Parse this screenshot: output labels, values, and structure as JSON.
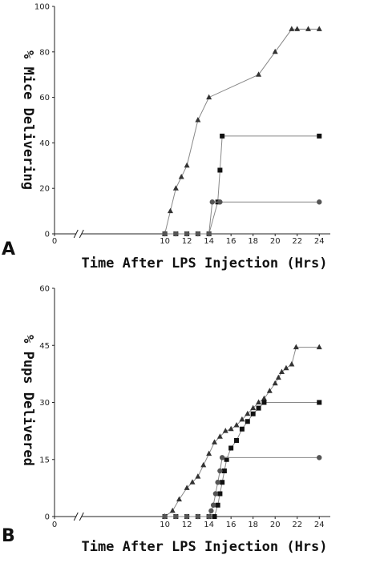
{
  "chart_data": [
    {
      "panel": "A",
      "type": "line",
      "xlabel": "Time After LPS Injection (Hrs)",
      "ylabel": "% Mice Delivering",
      "xlim": [
        0,
        25
      ],
      "ylim": [
        0,
        100
      ],
      "xticks": [
        0,
        10,
        12,
        14,
        16,
        18,
        20,
        22,
        24
      ],
      "yticks": [
        0,
        20,
        40,
        60,
        80,
        100
      ],
      "axis_break": true,
      "series": [
        {
          "marker": "triangle",
          "x": [
            10,
            10.5,
            11,
            11.5,
            12,
            13,
            14,
            18.5,
            20,
            21.5,
            22,
            23,
            24
          ],
          "y": [
            0,
            10,
            20,
            25,
            30,
            50,
            60,
            70,
            80,
            90,
            90,
            90,
            90
          ]
        },
        {
          "marker": "square",
          "x": [
            10,
            11,
            12,
            13,
            14,
            14.8,
            15,
            15.2,
            24
          ],
          "y": [
            0,
            0,
            0,
            0,
            0,
            14,
            28,
            43,
            43
          ]
        },
        {
          "marker": "circle",
          "x": [
            10,
            11,
            12,
            13,
            14,
            14.3,
            15,
            24
          ],
          "y": [
            0,
            0,
            0,
            0,
            0,
            14,
            14,
            14
          ]
        }
      ]
    },
    {
      "panel": "B",
      "type": "line",
      "xlabel": "Time After LPS Injection (Hrs)",
      "ylabel": "% Pups Delivered",
      "xlim": [
        0,
        25
      ],
      "ylim": [
        0,
        60
      ],
      "xticks": [
        0,
        10,
        12,
        14,
        16,
        18,
        20,
        22,
        24
      ],
      "yticks": [
        0,
        15,
        30,
        45,
        60
      ],
      "axis_break": true,
      "series": [
        {
          "marker": "triangle",
          "x": [
            10,
            10.7,
            11.3,
            12,
            12.5,
            13,
            13.5,
            14,
            14.5,
            15,
            15.5,
            16,
            16.5,
            17,
            17.5,
            18,
            18.5,
            19,
            19.5,
            20,
            20.3,
            20.6,
            21,
            21.5,
            21.9,
            24
          ],
          "y": [
            0,
            1.5,
            4.5,
            7.5,
            9,
            10.5,
            13.5,
            16.5,
            19.5,
            21,
            22.5,
            23,
            24,
            25.5,
            27,
            28.5,
            30,
            31,
            33,
            35,
            36.5,
            38,
            39,
            40,
            44.5,
            44.5
          ]
        },
        {
          "marker": "square",
          "x": [
            10,
            11,
            12,
            13,
            14,
            14.5,
            14.8,
            15,
            15.2,
            15.4,
            15.6,
            16,
            16.5,
            17,
            17.5,
            18,
            18.5,
            19,
            24
          ],
          "y": [
            0,
            0,
            0,
            0,
            0,
            0,
            3,
            6,
            9,
            12,
            15,
            18,
            20,
            23,
            25,
            27,
            28.5,
            30,
            30
          ]
        },
        {
          "marker": "circle",
          "x": [
            10,
            11,
            12,
            13,
            14,
            14.2,
            14.4,
            14.6,
            14.8,
            15,
            15.2,
            24
          ],
          "y": [
            0,
            0,
            0,
            0,
            0,
            1.5,
            3,
            6,
            9,
            12,
            15.5,
            15.5
          ]
        }
      ]
    }
  ]
}
